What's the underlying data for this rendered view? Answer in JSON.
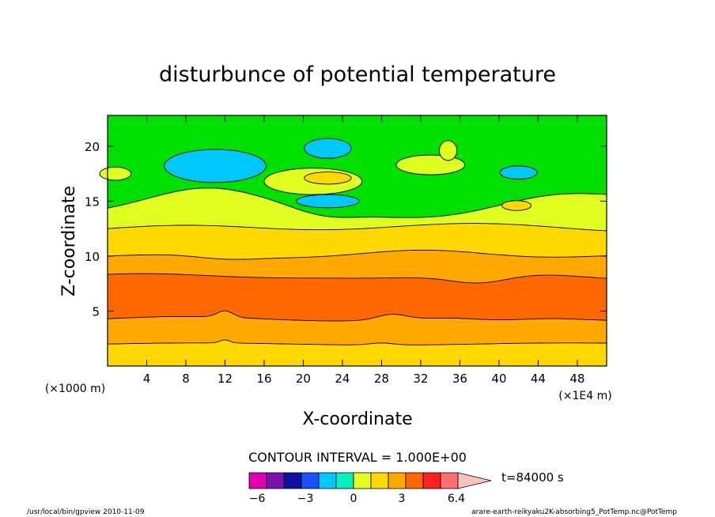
{
  "chart_data": {
    "type": "contour",
    "title": "disturbunce of potential temperature",
    "xlabel": "X-coordinate",
    "ylabel": "Z-coordinate",
    "x_unit_left": "(×1000 m)",
    "x_unit_right": "(×1E4 m)",
    "xlim": [
      0,
      51
    ],
    "ylim": [
      0,
      22.8
    ],
    "x_ticks": [
      4,
      8,
      12,
      16,
      20,
      24,
      28,
      32,
      36,
      40,
      44,
      48
    ],
    "x_tick_labels": [
      "4",
      "8",
      "12",
      "16",
      "20",
      "24",
      "28",
      "32",
      "36",
      "40",
      "44",
      "48"
    ],
    "y_ticks": [
      5,
      10,
      15,
      20
    ],
    "y_tick_labels": [
      "5",
      "10",
      "15",
      "20"
    ],
    "contour_interval_text": "CONTOUR INTERVAL = 1.000E+00",
    "time_label": "t=84000 s",
    "colorbar": {
      "colors": [
        "#e000b0",
        "#7a10b0",
        "#1010a0",
        "#1850ff",
        "#00c8ff",
        "#00f0c0",
        "#e0ff20",
        "#ffd800",
        "#ffa800",
        "#ff6800",
        "#ff2020",
        "#ff7070",
        "#ffc0c0"
      ],
      "tick_values": [
        -6,
        -3,
        0,
        3,
        6.4
      ],
      "tick_labels": [
        "−6",
        "−3",
        "0",
        "3",
        "6.4"
      ]
    },
    "level_colors": {
      "level_0_1": "#ffd800",
      "level_1_2": "#ffa800",
      "level_2_3": "#ff6800",
      "level_neg1_0": "#e0ff20",
      "level_neg2_neg1": "#00f0c0",
      "level_neg3_neg2": "#00c8ff"
    }
  },
  "footer": {
    "left": "/usr/local/bin/gpview   2010-11-09",
    "right": "arare-earth-reikyaku2K-absorbing5_PotTemp.nc@PotTemp"
  }
}
